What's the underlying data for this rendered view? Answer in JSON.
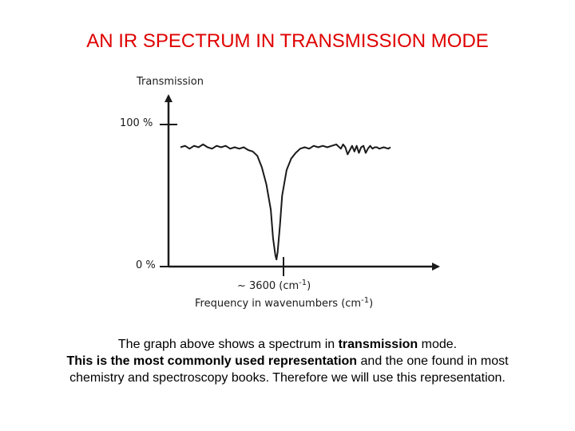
{
  "slide": {
    "title": "AN IR SPECTRUM IN TRANSMISSION MODE"
  },
  "chart_data": {
    "type": "line",
    "ylabel": "Transmission",
    "xlabel": "Frequency in wavenumbers (cm",
    "xlabel_unit_sup": "-1",
    "xlabel_close": ")",
    "ytick_labels": [
      "100 %",
      "0 %"
    ],
    "ylim": [
      0,
      100
    ],
    "annotation": {
      "text": "~ 3600  (cm",
      "sup": "-1",
      "close": ")"
    },
    "series": [
      {
        "values": [
          [
            0,
            84
          ],
          [
            2,
            85
          ],
          [
            4,
            83
          ],
          [
            6,
            85
          ],
          [
            8,
            84
          ],
          [
            10,
            86
          ],
          [
            12,
            84
          ],
          [
            14,
            83
          ],
          [
            16,
            85
          ],
          [
            18,
            84
          ],
          [
            20,
            85
          ],
          [
            22,
            83
          ],
          [
            24,
            84
          ],
          [
            26,
            83
          ],
          [
            28,
            84
          ],
          [
            30,
            82
          ],
          [
            32,
            81
          ],
          [
            34,
            78
          ],
          [
            36,
            70
          ],
          [
            38,
            58
          ],
          [
            40,
            40
          ],
          [
            41,
            20
          ],
          [
            42,
            8
          ],
          [
            42.5,
            5
          ],
          [
            43,
            10
          ],
          [
            44,
            28
          ],
          [
            45,
            50
          ],
          [
            47,
            68
          ],
          [
            49,
            76
          ],
          [
            51,
            80
          ],
          [
            53,
            83
          ],
          [
            55,
            84
          ],
          [
            57,
            83
          ],
          [
            59,
            85
          ],
          [
            61,
            84
          ],
          [
            63,
            85
          ],
          [
            65,
            84
          ],
          [
            67,
            85
          ],
          [
            69,
            86
          ],
          [
            71,
            83
          ],
          [
            72,
            86
          ],
          [
            73,
            84
          ],
          [
            74,
            79
          ],
          [
            75,
            82
          ],
          [
            76,
            85
          ],
          [
            77,
            81
          ],
          [
            78,
            85
          ],
          [
            79,
            80
          ],
          [
            80,
            84
          ],
          [
            81,
            85
          ],
          [
            82,
            80
          ],
          [
            83,
            83
          ],
          [
            84,
            85
          ],
          [
            85,
            83
          ],
          [
            86,
            84
          ],
          [
            87,
            84
          ],
          [
            88,
            83
          ],
          [
            90,
            84
          ],
          [
            92,
            83
          ],
          [
            93,
            84
          ]
        ]
      }
    ]
  },
  "caption": {
    "line1_pre": "The graph above shows a spectrum in ",
    "line1_bold": "transmission",
    "line1_post": " mode.",
    "line2_bold": "This is the most commonly used representation",
    "line2_post": " and the one found in most",
    "line3": "chemistry and spectroscopy books. Therefore we will use this representation."
  }
}
